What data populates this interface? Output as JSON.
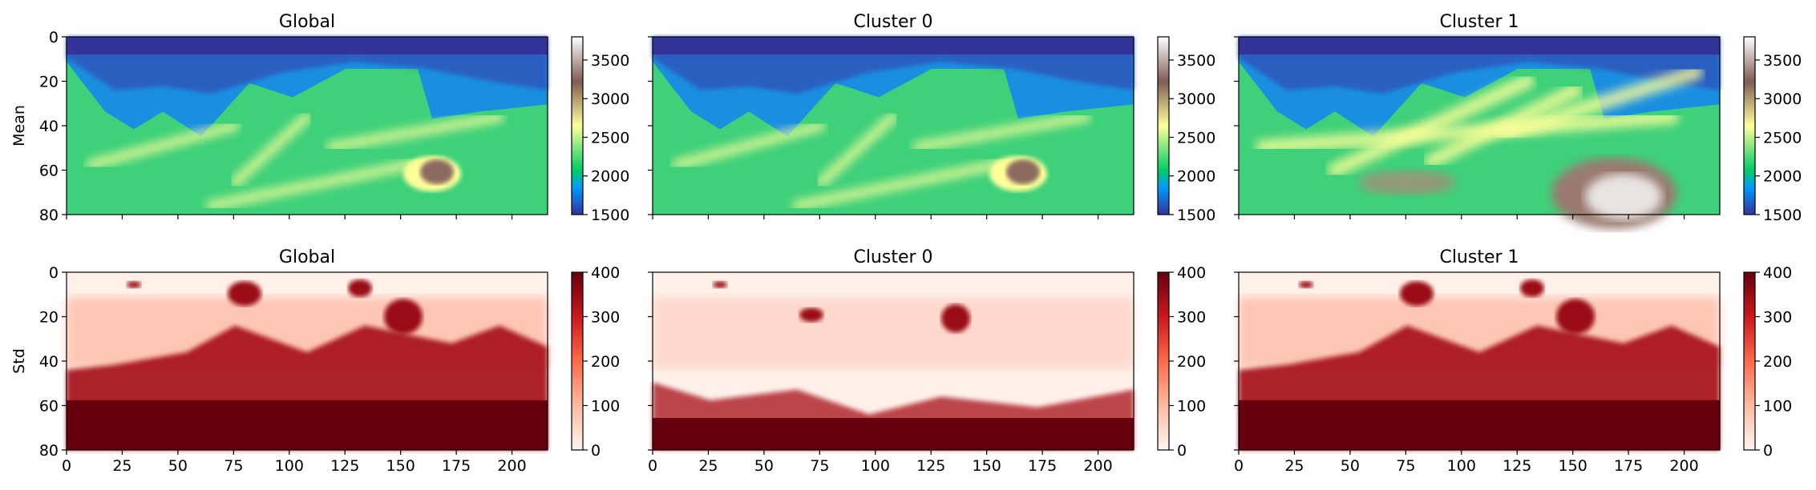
{
  "chart_data": {
    "type": "heatmap",
    "layout": "2 rows x 3 columns",
    "columns": [
      "Global",
      "Cluster 0",
      "Cluster 1"
    ],
    "rows": [
      {
        "ylabel": "Mean",
        "colormap": "terrain",
        "colorbar": {
          "range": [
            1500,
            3800
          ],
          "ticks": [
            "1500",
            "2000",
            "2500",
            "3000",
            "3500"
          ]
        },
        "panels": [
          {
            "title": "Global",
            "show_x_ticklabels": false,
            "show_y_ticklabels": true
          },
          {
            "title": "Cluster 0",
            "show_x_ticklabels": false,
            "show_y_ticklabels": false
          },
          {
            "title": "Cluster 1",
            "show_x_ticklabels": false,
            "show_y_ticklabels": false
          }
        ]
      },
      {
        "ylabel": "Std",
        "colormap": "reds",
        "colorbar": {
          "range": [
            0,
            400
          ],
          "ticks": [
            "0",
            "100",
            "200",
            "300",
            "400"
          ]
        },
        "panels": [
          {
            "title": "Global",
            "show_x_ticklabels": true,
            "show_y_ticklabels": true
          },
          {
            "title": "Cluster 0",
            "show_x_ticklabels": true,
            "show_y_ticklabels": false
          },
          {
            "title": "Cluster 1",
            "show_x_ticklabels": true,
            "show_y_ticklabels": false
          }
        ]
      }
    ],
    "x_ticks": [
      "0",
      "25",
      "50",
      "75",
      "100",
      "125",
      "150",
      "175",
      "200"
    ],
    "y_ticks": [
      "0",
      "20",
      "40",
      "60",
      "80"
    ],
    "xlim": [
      0,
      216
    ],
    "ylim": [
      80,
      0
    ],
    "y_inverted": true,
    "grid": false
  }
}
